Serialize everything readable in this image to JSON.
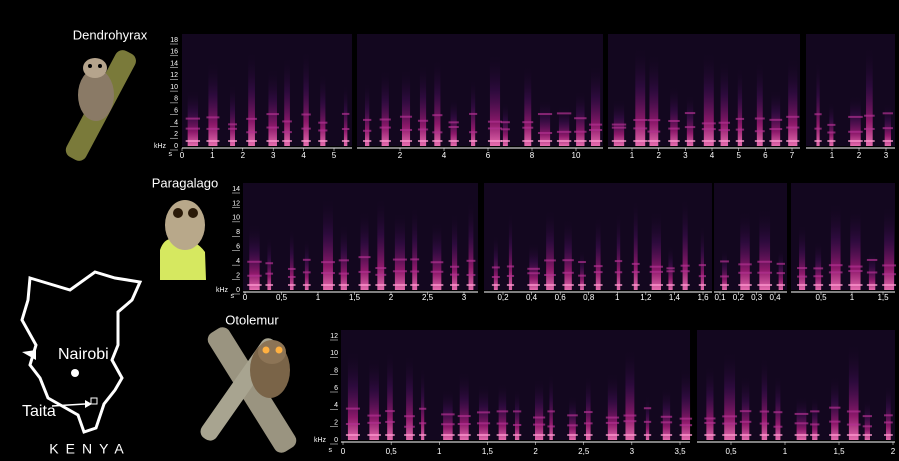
{
  "rows": [
    {
      "label": "Dendrohyrax",
      "y_unit": "kHz",
      "x_unit": "s",
      "yticks": [
        "0",
        "2",
        "4",
        "6",
        "8",
        "10",
        "12",
        "14",
        "16",
        "18"
      ],
      "panels": [
        {
          "xticks": [
            "0",
            "1",
            "2",
            "3",
            "4",
            "5"
          ]
        },
        {
          "xticks": [
            "2",
            "4",
            "6",
            "8",
            "10"
          ]
        },
        {
          "xticks": [
            "1",
            "2",
            "3",
            "4",
            "5",
            "6",
            "7"
          ]
        },
        {
          "xticks": [
            "1",
            "2",
            "3"
          ]
        }
      ]
    },
    {
      "label": "Paragalago",
      "y_unit": "kHz",
      "x_unit": "s",
      "yticks": [
        "0",
        "2",
        "4",
        "6",
        "8",
        "10",
        "12",
        "14"
      ],
      "panels": [
        {
          "xticks": [
            "0",
            "0,5",
            "1",
            "1,5",
            "2",
            "2,5",
            "3"
          ]
        },
        {
          "xticks": [
            "0,2",
            "0,4",
            "0,6",
            "0,8",
            "1",
            "1,2",
            "1,4",
            "1,6"
          ]
        },
        {
          "xticks": [
            "0,1",
            "0,2",
            "0,3",
            "0,4"
          ]
        },
        {
          "xticks": [
            "0,5",
            "1",
            "1,5"
          ]
        }
      ]
    },
    {
      "label": "Otolemur",
      "y_unit": "kHz",
      "x_unit": "s",
      "yticks": [
        "0",
        "2",
        "4",
        "6",
        "8",
        "10",
        "12"
      ],
      "panels": [
        {
          "xticks": [
            "0",
            "0,5",
            "1",
            "1,5",
            "2",
            "2,5",
            "3",
            "3,5"
          ]
        },
        {
          "xticks": [
            "0,5",
            "1",
            "1,5",
            "2"
          ]
        }
      ]
    }
  ],
  "map": {
    "city": "Nairobi",
    "site": "Taita",
    "country": "KENYA"
  }
}
